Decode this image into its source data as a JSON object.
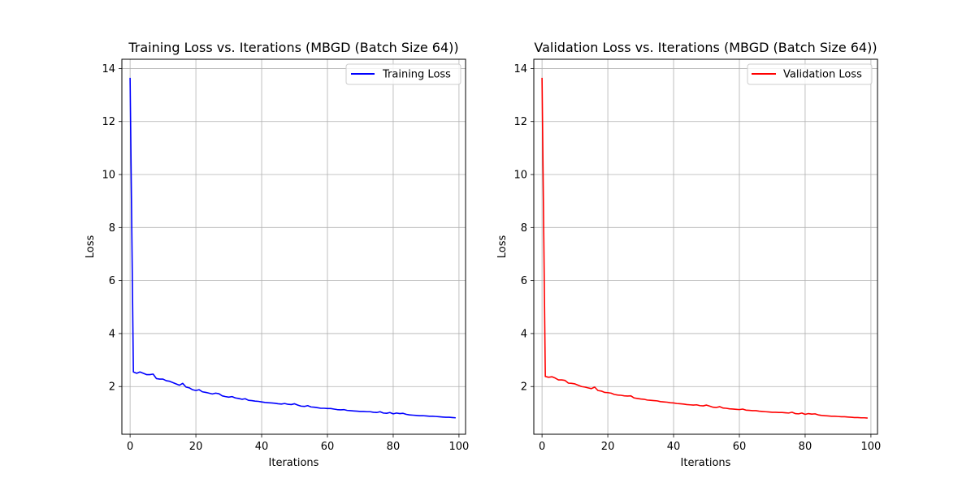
{
  "chart_data": [
    {
      "type": "line",
      "title": "Training Loss vs. Iterations (MBGD (Batch Size 64))",
      "xlabel": "Iterations",
      "ylabel": "Loss",
      "xlim": [
        -2.5,
        102
      ],
      "ylim": [
        0.2,
        14.35
      ],
      "xticks": [
        0,
        20,
        40,
        60,
        80,
        100
      ],
      "yticks": [
        2,
        4,
        6,
        8,
        10,
        12,
        14
      ],
      "grid": true,
      "legend": "top-right",
      "series": [
        {
          "name": "Training Loss",
          "color": "#0000ff",
          "x": [
            0,
            1,
            2,
            3,
            4,
            5,
            6,
            7,
            8,
            9,
            10,
            11,
            12,
            13,
            14,
            15,
            16,
            17,
            18,
            19,
            20,
            21,
            22,
            23,
            24,
            25,
            26,
            27,
            28,
            29,
            30,
            31,
            32,
            33,
            34,
            35,
            36,
            37,
            38,
            39,
            40,
            41,
            42,
            43,
            44,
            45,
            46,
            47,
            48,
            49,
            50,
            51,
            52,
            53,
            54,
            55,
            56,
            57,
            58,
            59,
            60,
            61,
            62,
            63,
            64,
            65,
            66,
            67,
            68,
            69,
            70,
            71,
            72,
            73,
            74,
            75,
            76,
            77,
            78,
            79,
            80,
            81,
            82,
            83,
            84,
            85,
            86,
            87,
            88,
            89,
            90,
            91,
            92,
            93,
            94,
            95,
            96,
            97,
            98,
            99
          ],
          "y": [
            13.65,
            2.55,
            2.5,
            2.55,
            2.5,
            2.45,
            2.45,
            2.47,
            2.3,
            2.28,
            2.28,
            2.22,
            2.2,
            2.15,
            2.1,
            2.05,
            2.12,
            1.98,
            1.95,
            1.88,
            1.85,
            1.88,
            1.8,
            1.78,
            1.75,
            1.72,
            1.75,
            1.73,
            1.65,
            1.62,
            1.6,
            1.62,
            1.57,
            1.55,
            1.52,
            1.54,
            1.48,
            1.47,
            1.45,
            1.44,
            1.42,
            1.4,
            1.39,
            1.38,
            1.37,
            1.35,
            1.34,
            1.36,
            1.33,
            1.32,
            1.35,
            1.3,
            1.26,
            1.25,
            1.28,
            1.23,
            1.22,
            1.2,
            1.18,
            1.18,
            1.17,
            1.17,
            1.15,
            1.13,
            1.12,
            1.13,
            1.1,
            1.09,
            1.08,
            1.07,
            1.06,
            1.06,
            1.05,
            1.05,
            1.03,
            1.02,
            1.05,
            1.0,
            0.99,
            1.02,
            0.97,
            1.0,
            0.98,
            0.99,
            0.95,
            0.93,
            0.92,
            0.91,
            0.9,
            0.9,
            0.89,
            0.88,
            0.88,
            0.87,
            0.86,
            0.85,
            0.84,
            0.84,
            0.83,
            0.82
          ]
        }
      ]
    },
    {
      "type": "line",
      "title": "Validation Loss vs. Iterations (MBGD (Batch Size 64))",
      "xlabel": "Iterations",
      "ylabel": "Loss",
      "xlim": [
        -2.5,
        102
      ],
      "ylim": [
        0.2,
        14.35
      ],
      "xticks": [
        0,
        20,
        40,
        60,
        80,
        100
      ],
      "yticks": [
        2,
        4,
        6,
        8,
        10,
        12,
        14
      ],
      "grid": true,
      "legend": "top-right",
      "series": [
        {
          "name": "Validation Loss",
          "color": "#ff0000",
          "x": [
            0,
            1,
            2,
            3,
            4,
            5,
            6,
            7,
            8,
            9,
            10,
            11,
            12,
            13,
            14,
            15,
            16,
            17,
            18,
            19,
            20,
            21,
            22,
            23,
            24,
            25,
            26,
            27,
            28,
            29,
            30,
            31,
            32,
            33,
            34,
            35,
            36,
            37,
            38,
            39,
            40,
            41,
            42,
            43,
            44,
            45,
            46,
            47,
            48,
            49,
            50,
            51,
            52,
            53,
            54,
            55,
            56,
            57,
            58,
            59,
            60,
            61,
            62,
            63,
            64,
            65,
            66,
            67,
            68,
            69,
            70,
            71,
            72,
            73,
            74,
            75,
            76,
            77,
            78,
            79,
            80,
            81,
            82,
            83,
            84,
            85,
            86,
            87,
            88,
            89,
            90,
            91,
            92,
            93,
            94,
            95,
            96,
            97,
            98,
            99
          ],
          "y": [
            13.65,
            2.38,
            2.35,
            2.37,
            2.32,
            2.25,
            2.25,
            2.23,
            2.13,
            2.12,
            2.1,
            2.05,
            2.0,
            1.98,
            1.95,
            1.92,
            1.98,
            1.85,
            1.83,
            1.78,
            1.77,
            1.75,
            1.7,
            1.68,
            1.67,
            1.65,
            1.64,
            1.65,
            1.57,
            1.55,
            1.53,
            1.52,
            1.49,
            1.48,
            1.47,
            1.46,
            1.43,
            1.42,
            1.41,
            1.39,
            1.38,
            1.36,
            1.35,
            1.34,
            1.32,
            1.31,
            1.3,
            1.31,
            1.28,
            1.27,
            1.3,
            1.26,
            1.22,
            1.21,
            1.24,
            1.19,
            1.18,
            1.16,
            1.15,
            1.14,
            1.13,
            1.15,
            1.11,
            1.1,
            1.09,
            1.09,
            1.07,
            1.06,
            1.05,
            1.04,
            1.03,
            1.03,
            1.02,
            1.02,
            1.01,
            1.0,
            1.03,
            0.98,
            0.97,
            1.0,
            0.95,
            0.98,
            0.96,
            0.97,
            0.93,
            0.91,
            0.9,
            0.89,
            0.88,
            0.88,
            0.87,
            0.86,
            0.86,
            0.85,
            0.84,
            0.83,
            0.83,
            0.82,
            0.82,
            0.81
          ]
        }
      ]
    }
  ]
}
